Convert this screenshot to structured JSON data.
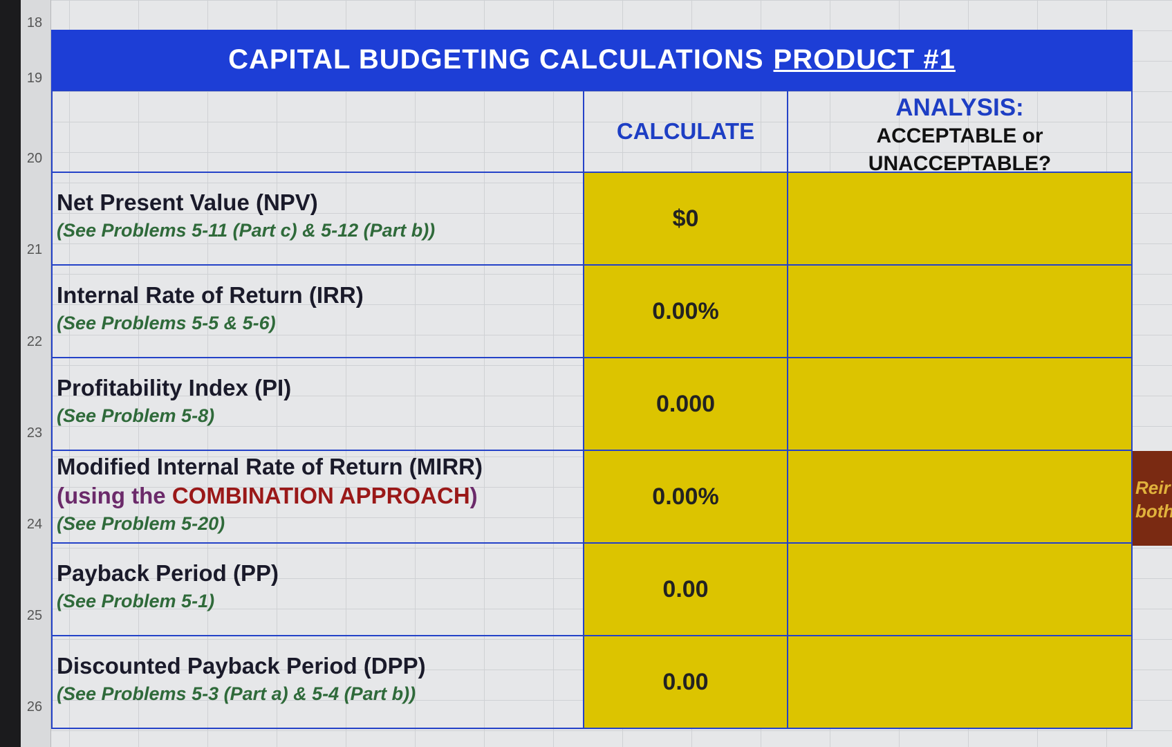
{
  "row_numbers": [
    "18",
    "19",
    "20",
    "21",
    "22",
    "23",
    "24",
    "25",
    "26"
  ],
  "header": {
    "title": "CAPITAL BUDGETING CALCULATIONS",
    "title_product": "PRODUCT #1"
  },
  "columns": {
    "calculate": "CALCULATE",
    "analysis_title": "ANALYSIS:",
    "analysis_line1": "ACCEPTABLE or",
    "analysis_line2": "UNACCEPTABLE?"
  },
  "rows": [
    {
      "label": "Net Present Value (NPV)",
      "notes": [
        "(See Problems 5-11 (Part c) & 5-12 (Part b))"
      ],
      "value": "$0"
    },
    {
      "label": "Internal Rate of Return (IRR)",
      "notes": [
        "(See Problems 5-5 & 5-6)"
      ],
      "value": "0.00%"
    },
    {
      "label": "Profitability Index (PI)",
      "notes": [
        "(See Problem 5-8)"
      ],
      "value": "0.000"
    },
    {
      "label": "Modified Internal Rate of Return (MIRR)",
      "approach": [
        "(using the ",
        "COMBINATION APPROACH",
        ")"
      ],
      "notes": [
        "(See Problem 5-20)"
      ],
      "value": "0.00%"
    },
    {
      "label": "Payback Period (PP)",
      "notes": [
        "(See Problem 5-1)"
      ],
      "value": "0.00"
    },
    {
      "label": "Discounted Payback Period (DPP)",
      "notes": [
        "(See Problems 5-3 (Part a) & 5-4 (Part b))"
      ],
      "value": "0.00"
    }
  ],
  "side_note": [
    "Reir",
    "both"
  ]
}
